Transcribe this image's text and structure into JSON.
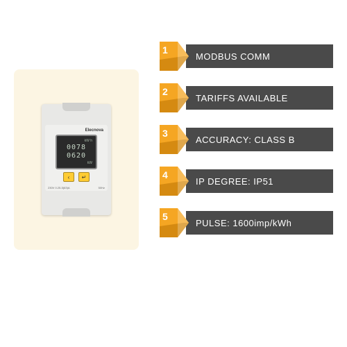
{
  "product": {
    "brand": "Elecnova",
    "lcd": {
      "line1": "0078",
      "line2": "0620",
      "unit1": "kW h",
      "unit2": "kW"
    },
    "specs_left": "230V 0.25-5(63)A",
    "specs_right": "50Hz"
  },
  "features": [
    {
      "num": "1",
      "label": "MODBUS COMM"
    },
    {
      "num": "2",
      "label": "TARIFFS AVAILABLE"
    },
    {
      "num": "3",
      "label": "ACCURACY: CLASS B"
    },
    {
      "num": "4",
      "label": "IP DEGREE: IP51"
    },
    {
      "num": "5",
      "label": "PULSE: 1600imp/kWh"
    }
  ],
  "colors": {
    "badge_orange": "#f5a623",
    "badge_dark": "#c77f0a",
    "bar_bg": "#4a4a4a",
    "product_bg": "#fcf5e3"
  }
}
